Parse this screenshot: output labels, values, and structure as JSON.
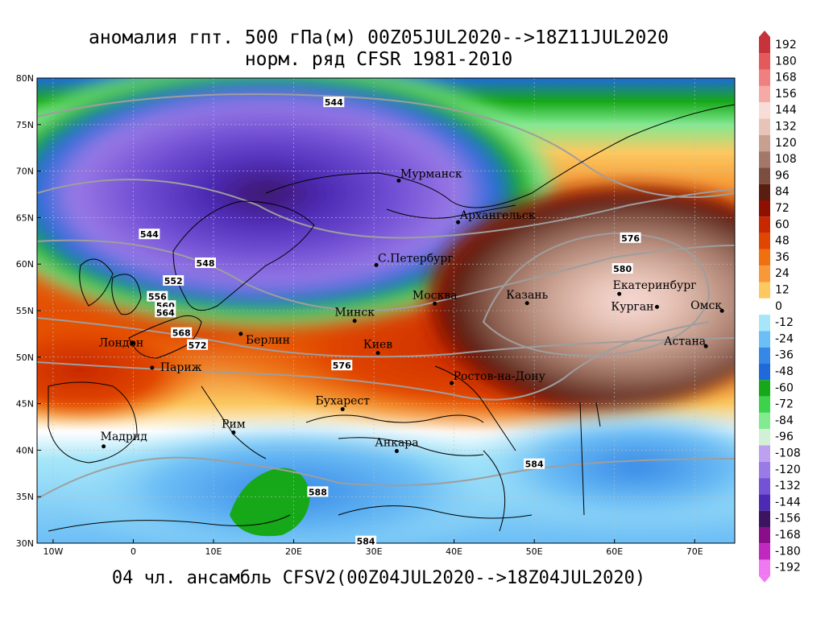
{
  "title_line1": "аномалия гпт. 500 гПа(м) 00Z05JUL2020-->18Z11JUL2020",
  "title_line2": "норм. ряд CFSR 1981-2010",
  "bottom_label": "04 чл. ансамбль CFSV2(00Z04JUL2020-->18Z04JUL2020)",
  "lat_labels": [
    "80N",
    "75N",
    "70N",
    "65N",
    "60N",
    "55N",
    "50N",
    "45N",
    "40N",
    "35N",
    "30N"
  ],
  "lon_labels": [
    "10W",
    "0",
    "10E",
    "20E",
    "30E",
    "40E",
    "50E",
    "60E",
    "70E"
  ],
  "cities": [
    {
      "name": "Мурманск",
      "lon": 33.1,
      "lat": 68.97
    },
    {
      "name": "Архангельск",
      "lon": 40.5,
      "lat": 64.5
    },
    {
      "name": "С.Петербург",
      "lon": 30.3,
      "lat": 59.9
    },
    {
      "name": "Минск",
      "lon": 27.6,
      "lat": 53.9
    },
    {
      "name": "Москва",
      "lon": 37.6,
      "lat": 55.75
    },
    {
      "name": "Казань",
      "lon": 49.1,
      "lat": 55.8
    },
    {
      "name": "Екатеринбург",
      "lon": 60.6,
      "lat": 56.8
    },
    {
      "name": "Курган",
      "lon": 65.3,
      "lat": 55.4
    },
    {
      "name": "Омск",
      "lon": 73.4,
      "lat": 54.98
    },
    {
      "name": "Астана",
      "lon": 71.4,
      "lat": 51.17
    },
    {
      "name": "Берлин",
      "lon": 13.4,
      "lat": 52.5
    },
    {
      "name": "Лондон",
      "lon": -0.1,
      "lat": 51.5
    },
    {
      "name": "Париж",
      "lon": 2.35,
      "lat": 48.86
    },
    {
      "name": "Киев",
      "lon": 30.5,
      "lat": 50.45
    },
    {
      "name": "Ростов-на-Дону",
      "lon": 39.7,
      "lat": 47.2
    },
    {
      "name": "Бухарест",
      "lon": 26.1,
      "lat": 44.4
    },
    {
      "name": "Рим",
      "lon": 12.5,
      "lat": 41.9
    },
    {
      "name": "Мадрид",
      "lon": -3.7,
      "lat": 40.4
    },
    {
      "name": "Анкара",
      "lon": 32.85,
      "lat": 39.9
    }
  ],
  "contour_labels": [
    {
      "text": "544",
      "lon": 25,
      "lat": 77.4
    },
    {
      "text": "544",
      "lon": 2,
      "lat": 63.2
    },
    {
      "text": "548",
      "lon": 9,
      "lat": 60.1
    },
    {
      "text": "552",
      "lon": 5,
      "lat": 58.2
    },
    {
      "text": "556",
      "lon": 3,
      "lat": 56.5
    },
    {
      "text": "560",
      "lon": 4,
      "lat": 55.5
    },
    {
      "text": "564",
      "lon": 4,
      "lat": 54.8
    },
    {
      "text": "568",
      "lon": 6,
      "lat": 52.6
    },
    {
      "text": "572",
      "lon": 8,
      "lat": 51.3
    },
    {
      "text": "576",
      "lon": 26,
      "lat": 49.1
    },
    {
      "text": "576",
      "lon": 62,
      "lat": 62.8
    },
    {
      "text": "580",
      "lon": 61,
      "lat": 59.5
    },
    {
      "text": "584",
      "lon": 50,
      "lat": 38.5
    },
    {
      "text": "588",
      "lon": 23,
      "lat": 35.5
    },
    {
      "text": "584",
      "lon": 29,
      "lat": 30.2
    }
  ],
  "legend": {
    "values": [
      "192",
      "180",
      "168",
      "156",
      "144",
      "132",
      "120",
      "108",
      "96",
      "84",
      "72",
      "60",
      "48",
      "36",
      "24",
      "12",
      "0",
      "-12",
      "-24",
      "-36",
      "-48",
      "-60",
      "-72",
      "-84",
      "-96",
      "-108",
      "-120",
      "-132",
      "-144",
      "-156",
      "-168",
      "-180",
      "-192"
    ],
    "colors": [
      "#c8323a",
      "#e45a5a",
      "#f08080",
      "#f5aaa6",
      "#f8dcd8",
      "#e8c4b8",
      "#c8a090",
      "#a47868",
      "#7c4e40",
      "#5a1e10",
      "#8e1000",
      "#c82800",
      "#e14600",
      "#f07010",
      "#f89838",
      "#fcc860",
      "#ffffff",
      "#a6e6f8",
      "#6cbef6",
      "#3688e6",
      "#1f6ad8",
      "#16a818",
      "#3cd24c",
      "#82ea90",
      "#d2f0d6",
      "#bea0f0",
      "#9a7ae6",
      "#7452d6",
      "#4c2ab4",
      "#3c1462",
      "#8a0e8a",
      "#c028c0",
      "#f078f0"
    ]
  },
  "colors": {
    "land_outline": "#000000",
    "contour": "#9e9e9e",
    "grid": "#c0c0c0"
  }
}
